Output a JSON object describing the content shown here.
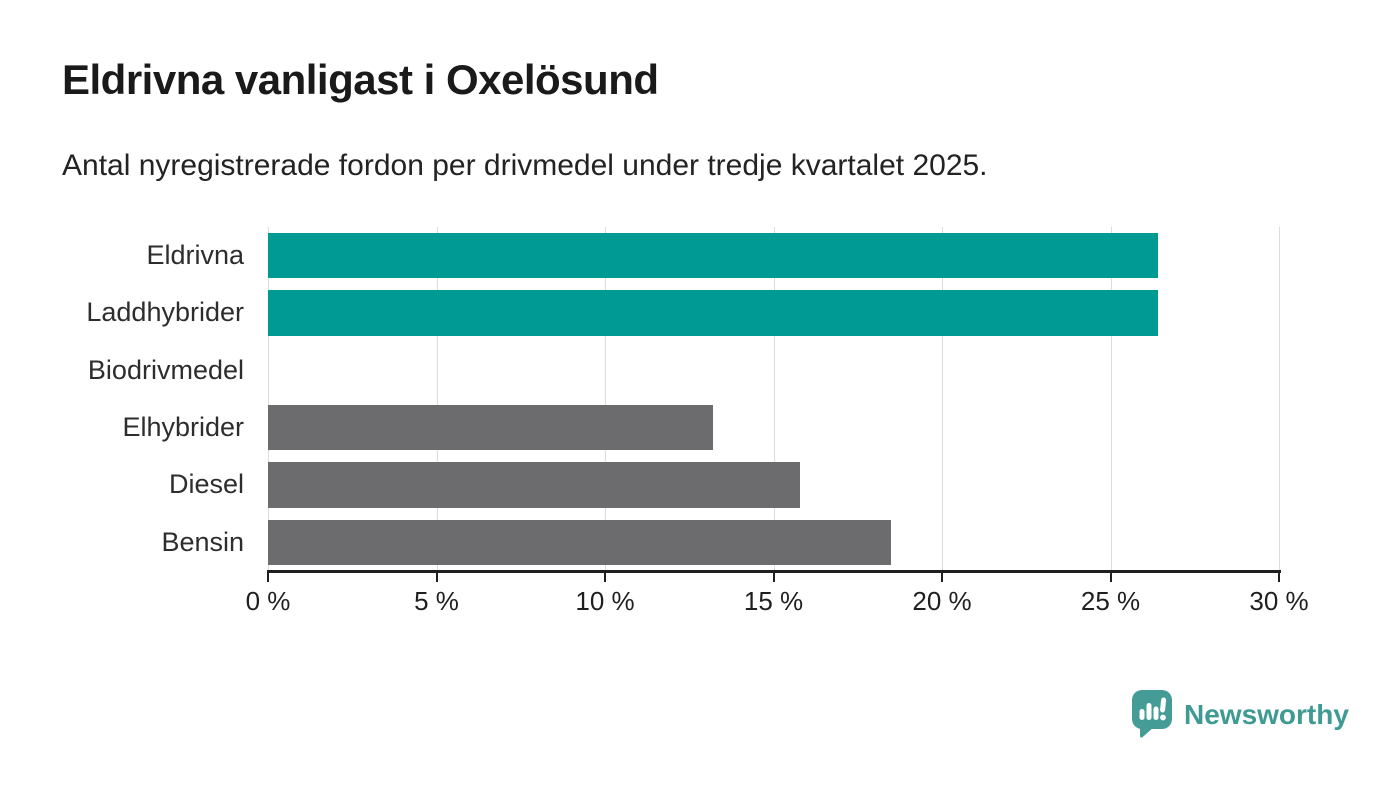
{
  "chart_data": {
    "type": "bar",
    "orientation": "horizontal",
    "title": "Eldrivna vanligast i Oxelösund",
    "subtitle": "Antal nyregistrerade fordon per drivmedel under tredje kvartalet 2025.",
    "categories": [
      "Eldrivna",
      "Laddhybrider",
      "Biodrivmedel",
      "Elhybrider",
      "Diesel",
      "Bensin"
    ],
    "values": [
      26.4,
      26.4,
      0,
      13.2,
      15.8,
      18.5
    ],
    "unit": "%",
    "xlabel": "",
    "ylabel": "",
    "xlim": [
      0,
      30
    ],
    "tick_values": [
      0,
      5,
      10,
      15,
      20,
      25,
      30
    ],
    "x_ticks": [
      "0 %",
      "5 %",
      "10 %",
      "15 %",
      "20 %",
      "25 %",
      "30 %"
    ],
    "bar_colors": [
      "#009a94",
      "#009a94",
      "#009a94",
      "#6c6b6e",
      "#6c6b6e",
      "#6c6b6e"
    ],
    "highlight_color": "#009a94",
    "default_color": "#6c6b6e",
    "grid": true,
    "legend": false
  },
  "branding": {
    "logo_text": "Newsworthy",
    "logo_color": "#3f9a94",
    "icon_color": "#459c96",
    "icon_name": "newsworthy-pin-barchart-icon"
  }
}
